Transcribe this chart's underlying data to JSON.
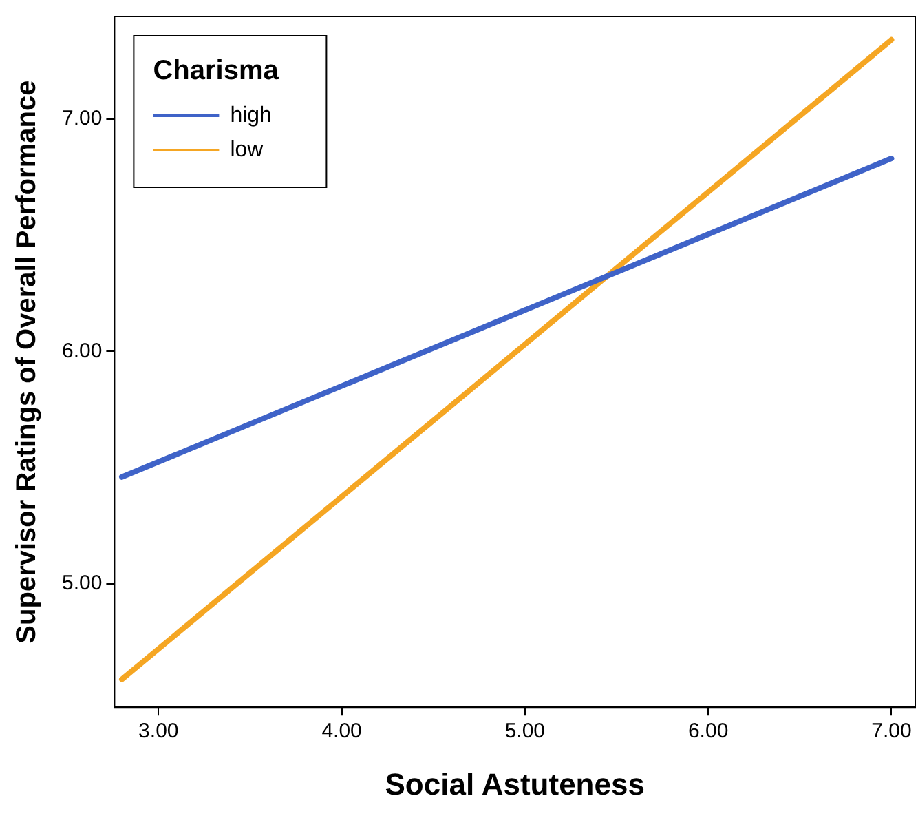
{
  "chart_data": {
    "type": "line",
    "xlabel": "Social Astuteness",
    "ylabel": "Supervisor Ratings of Overall Performance",
    "legend_title": "Charisma",
    "legend": "top left",
    "grid": false,
    "marker": "none",
    "line_style": "solid",
    "x": [
      2.8,
      7.0
    ],
    "series": [
      {
        "name": "high",
        "color": "#3f63c8",
        "values": [
          5.46,
          6.83
        ]
      },
      {
        "name": "low",
        "color": "#f5a623",
        "values": [
          4.59,
          7.34
        ]
      }
    ],
    "xlim": [
      2.76,
      7.13
    ],
    "xticks": [
      {
        "value": 3,
        "label": "3.00"
      },
      {
        "value": 4,
        "label": "4.00"
      },
      {
        "value": 5,
        "label": "5.00"
      },
      {
        "value": 6,
        "label": "6.00"
      },
      {
        "value": 7,
        "label": "7.00"
      }
    ],
    "ylim": [
      4.47,
      7.44
    ],
    "yticks": [
      {
        "value": 5,
        "label": "5.00"
      },
      {
        "value": 6,
        "label": "6.00"
      },
      {
        "value": 7,
        "label": "7.00"
      }
    ]
  }
}
